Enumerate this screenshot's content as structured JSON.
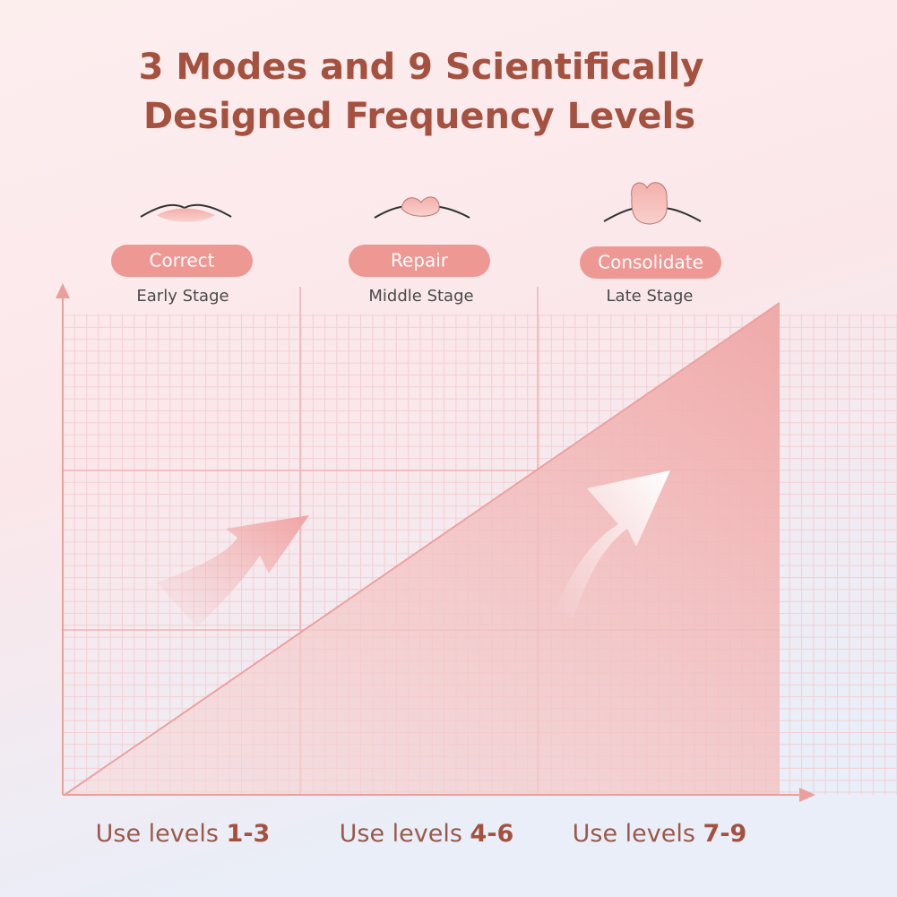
{
  "title": {
    "lines": [
      "3 Modes and 9 Scientifically",
      "Designed Frequency Levels"
    ]
  },
  "modes": [
    {
      "name": "Correct",
      "stage": "Early Stage",
      "prefix": "Use levels",
      "levels": "1-3"
    },
    {
      "name": "Repair",
      "stage": "Middle Stage",
      "prefix": "Use levels",
      "levels": "4-6"
    },
    {
      "name": "Consolidate",
      "stage": "Late Stage",
      "prefix": "Use levels",
      "levels": "7-9"
    }
  ]
}
